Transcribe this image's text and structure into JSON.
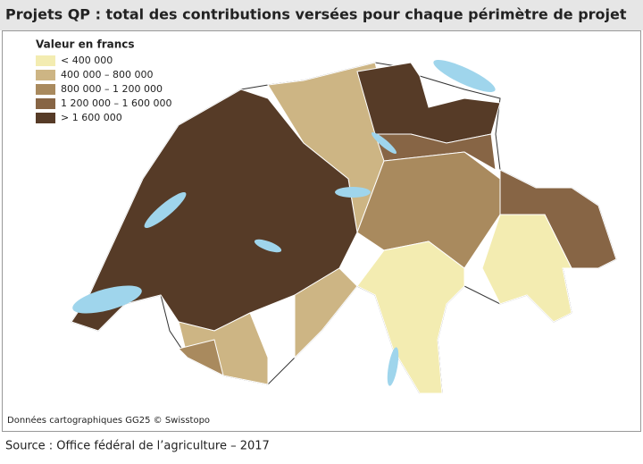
{
  "header": {
    "title": "Projets QP : total des contributions versées pour chaque périmètre de projet"
  },
  "legend": {
    "title": "Valeur en francs",
    "items": [
      {
        "label": "< 400 000",
        "color": "#f3ecb1"
      },
      {
        "label": "400 000 – 800 000",
        "color": "#cdb584"
      },
      {
        "label": "800 000 – 1 200 000",
        "color": "#a98a5e"
      },
      {
        "label": "1 200 000 – 1 600 000",
        "color": "#876545"
      },
      {
        "label": "> 1 600 000",
        "color": "#563b27"
      }
    ]
  },
  "map": {
    "credit": "Données cartographiques GG25 © Swisstopo"
  },
  "footer": {
    "source": "Source : Office fédéral de l’agriculture – 2017"
  }
}
